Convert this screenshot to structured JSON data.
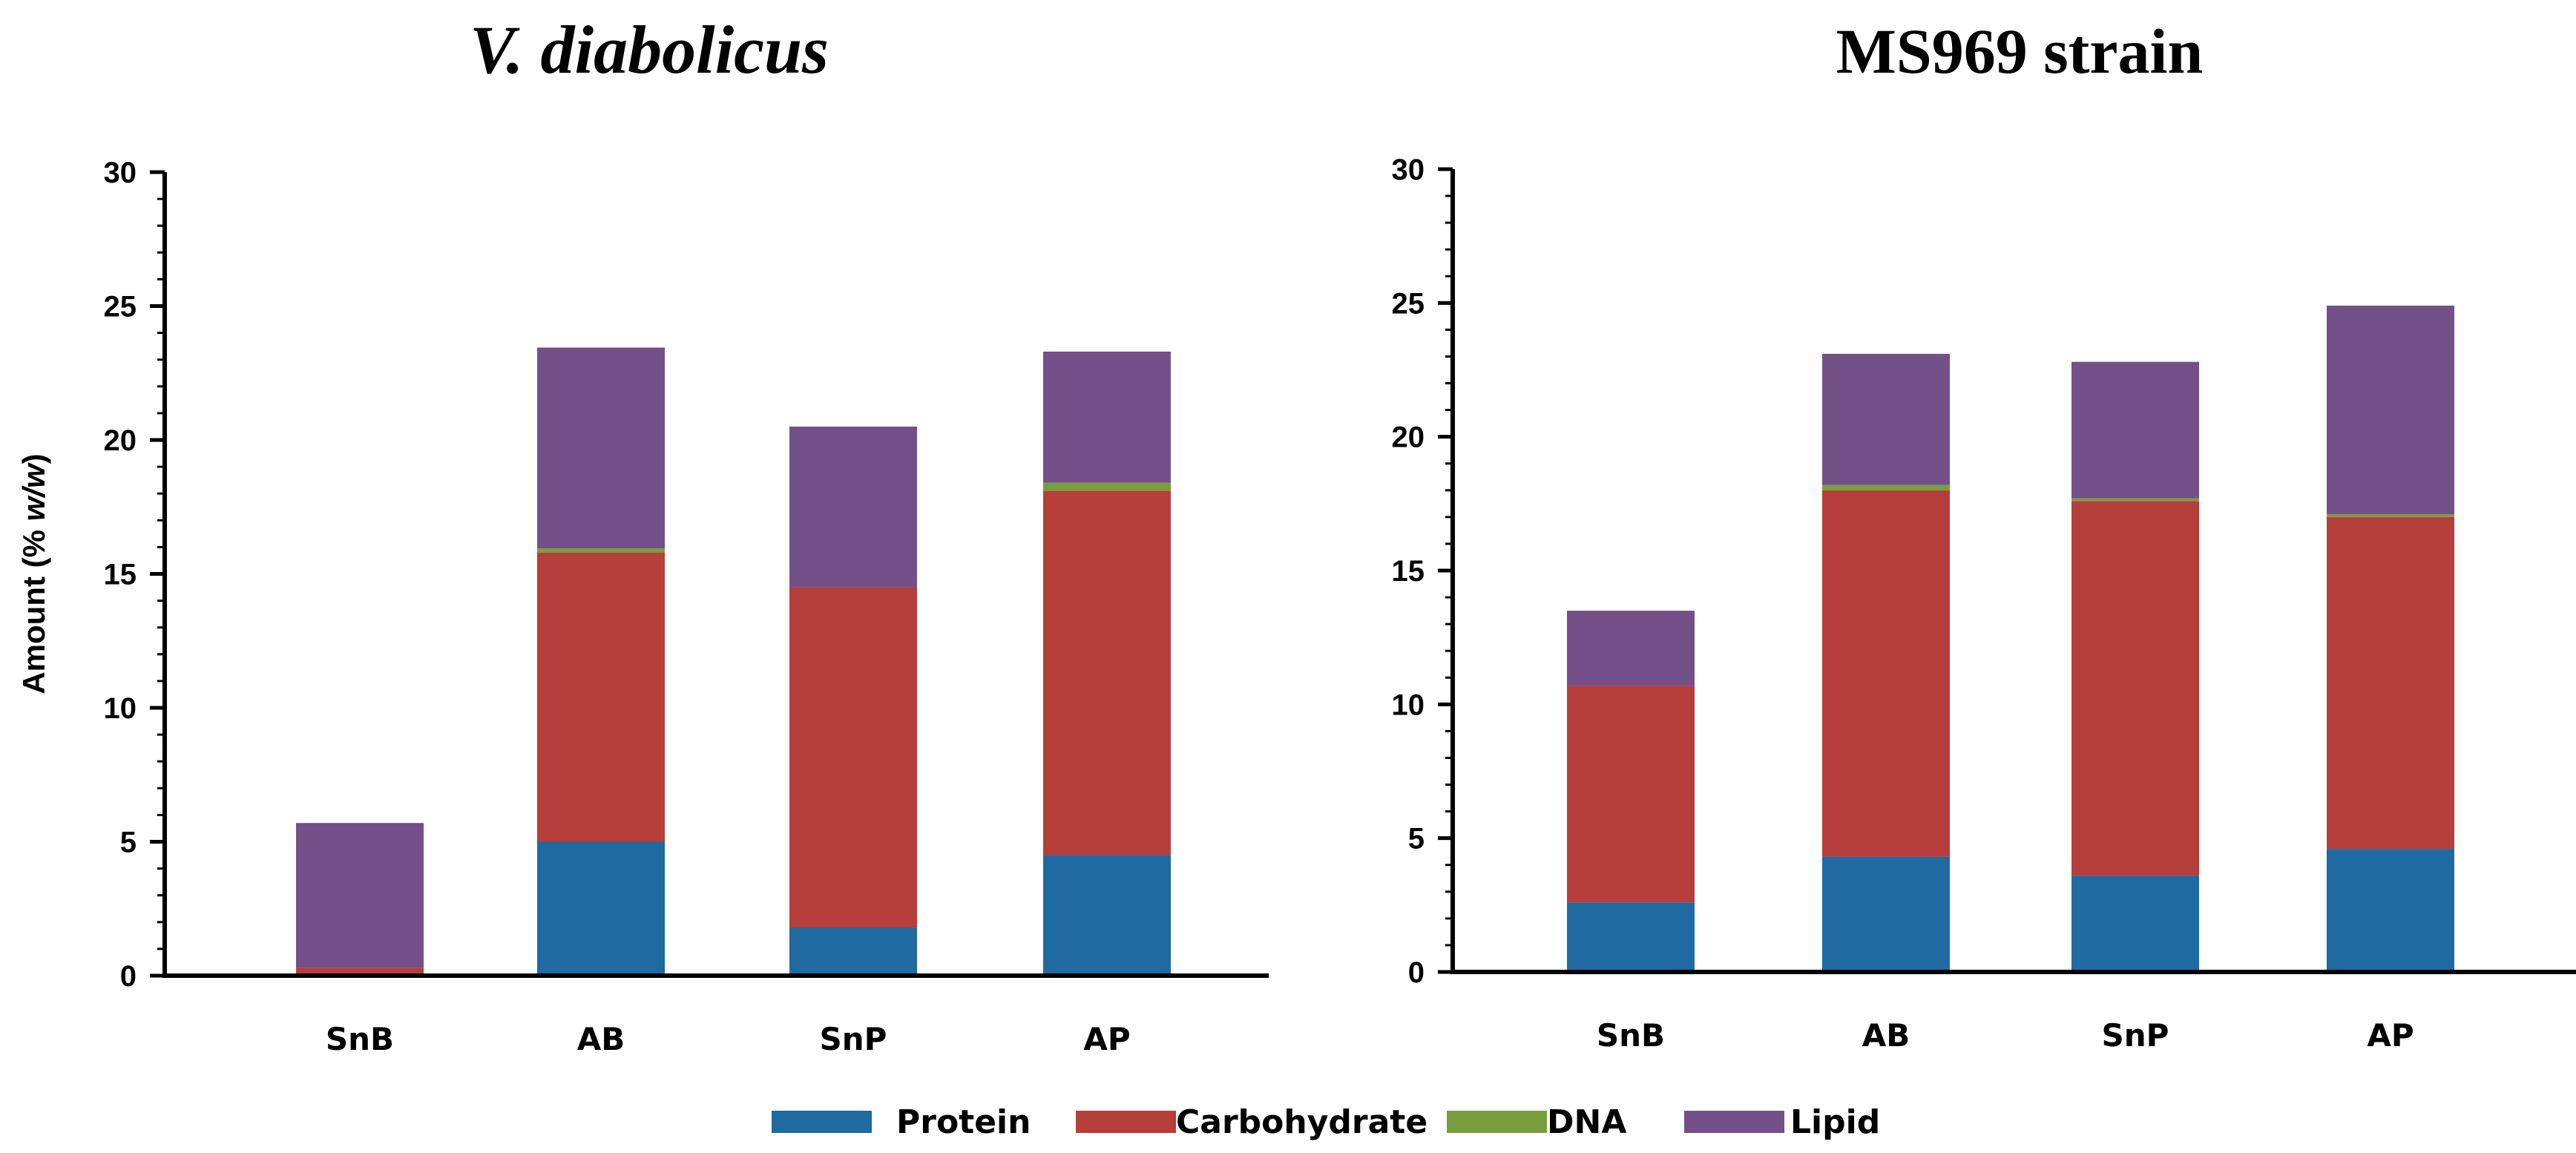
{
  "chart_data": [
    {
      "type": "bar",
      "stacked": true,
      "title": "V. diabolicus",
      "title_italic": true,
      "ylabel_prefix": "Amount (% ",
      "ylabel_italic": "w/w",
      "ylabel_suffix": ")",
      "xlabel": "",
      "ylim": [
        0,
        30
      ],
      "yticks": [
        0,
        5,
        10,
        15,
        20,
        25,
        30
      ],
      "categories": [
        "SnB",
        "AB",
        "SnP",
        "AP"
      ],
      "series": [
        {
          "name": "Protein",
          "values": [
            0,
            5.0,
            1.8,
            4.5
          ]
        },
        {
          "name": "Carbohydrate",
          "values": [
            0.3,
            10.8,
            12.7,
            13.6
          ]
        },
        {
          "name": "DNA",
          "values": [
            0,
            0.15,
            0,
            0.3
          ]
        },
        {
          "name": "Lipid",
          "values": [
            5.4,
            7.5,
            6.0,
            4.9
          ]
        }
      ]
    },
    {
      "type": "bar",
      "stacked": true,
      "title": "MS969 strain",
      "title_italic": false,
      "xlabel": "",
      "ylabel": "",
      "ylim": [
        0,
        30
      ],
      "yticks": [
        0,
        5,
        10,
        15,
        20,
        25,
        30
      ],
      "categories": [
        "SnB",
        "AB",
        "SnP",
        "AP"
      ],
      "series": [
        {
          "name": "Protein",
          "values": [
            2.6,
            4.3,
            3.6,
            4.6
          ]
        },
        {
          "name": "Carbohydrate",
          "values": [
            8.1,
            13.7,
            14.0,
            12.4
          ]
        },
        {
          "name": "DNA",
          "values": [
            0,
            0.2,
            0.1,
            0.1
          ]
        },
        {
          "name": "Lipid",
          "values": [
            2.8,
            4.9,
            5.1,
            7.8
          ]
        }
      ]
    }
  ],
  "legend": [
    {
      "name": "Protein",
      "color": "#1f6aa0"
    },
    {
      "name": "Carbohydrate",
      "color": "#b63e3b"
    },
    {
      "name": "DNA",
      "color": "#7a9d3e"
    },
    {
      "name": "Lipid",
      "color": "#745089"
    }
  ]
}
